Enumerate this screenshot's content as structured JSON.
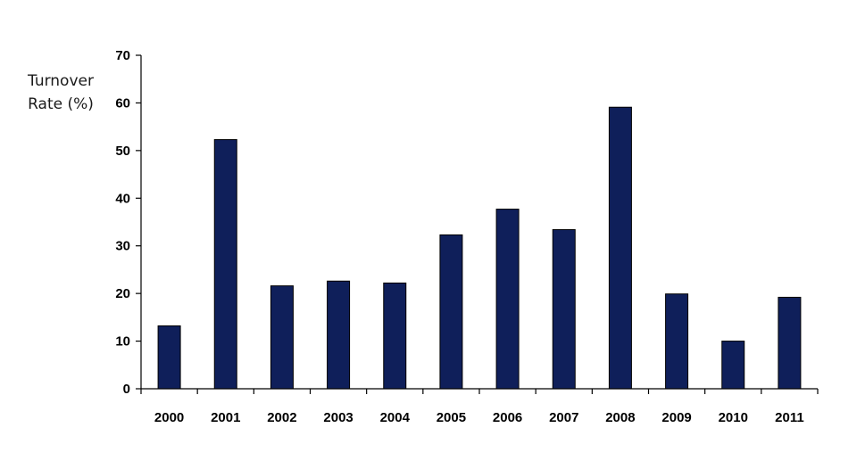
{
  "chart_data": {
    "type": "bar",
    "ylabel_lines": [
      "Turnover",
      "Rate (%)"
    ],
    "xlabel": "",
    "categories": [
      "2000",
      "2001",
      "2002",
      "2003",
      "2004",
      "2005",
      "2006",
      "2007",
      "2008",
      "2009",
      "2010",
      "2011"
    ],
    "values": [
      13.2,
      52.3,
      21.6,
      22.6,
      22.2,
      32.3,
      37.7,
      33.4,
      59.1,
      19.9,
      10.0,
      19.2
    ],
    "ylim": [
      0,
      70
    ],
    "yticks": [
      "0",
      "10",
      "20",
      "30",
      "40",
      "50",
      "60",
      "70"
    ],
    "grid": false,
    "bar_color": "#0f1f5a",
    "bar_edge_color": "#000000"
  }
}
